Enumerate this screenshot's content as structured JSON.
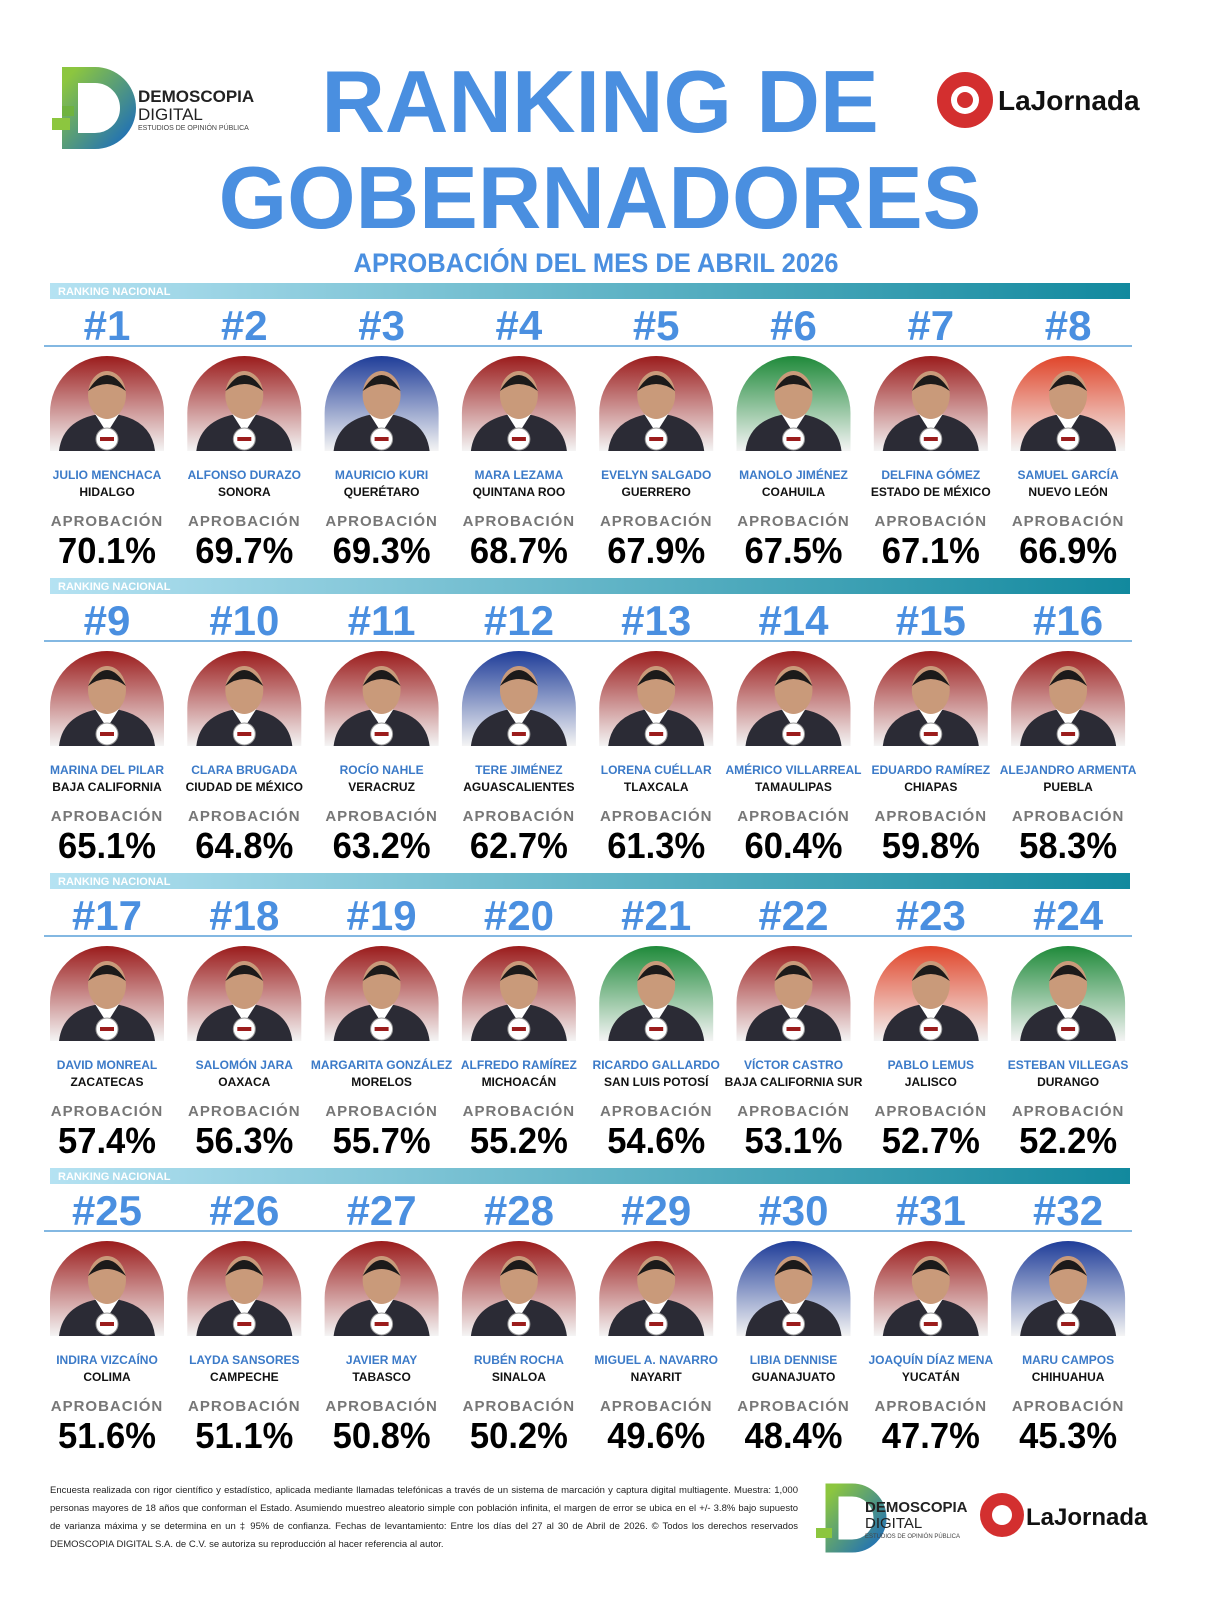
{
  "header": {
    "brand_name": "DEMOSCOPIA",
    "brand_name_2": "DIGITAL",
    "brand_tagline": "ESTUDIOS DE OPINIÓN PÚBLICA",
    "title_line_1": "RANKING DE",
    "title_line_2": "GOBERNADORES",
    "subtitle": "APROBACIÓN DEL MES DE ABRIL 2026",
    "partner": "LaJornada"
  },
  "section_label": "RANKING NACIONAL",
  "approval_label": "APROBACIÓN",
  "governors": [
    {
      "rank": "#1",
      "name": "JULIO MENCHACA",
      "state": "HIDALGO",
      "approval": "70.1%",
      "photo_color": "#9b1c1c"
    },
    {
      "rank": "#2",
      "name": "ALFONSO DURAZO",
      "state": "SONORA",
      "approval": "69.7%",
      "photo_color": "#9b1c1c"
    },
    {
      "rank": "#3",
      "name": "MAURICIO KURI",
      "state": "QUERÉTARO",
      "approval": "69.3%",
      "photo_color": "#1f3d99"
    },
    {
      "rank": "#4",
      "name": "MARA LEZAMA",
      "state": "QUINTANA ROO",
      "approval": "68.7%",
      "photo_color": "#9b1c1c"
    },
    {
      "rank": "#5",
      "name": "EVELYN SALGADO",
      "state": "GUERRERO",
      "approval": "67.9%",
      "photo_color": "#9b1c1c"
    },
    {
      "rank": "#6",
      "name": "MANOLO JIMÉNEZ",
      "state": "COAHUILA",
      "approval": "67.5%",
      "photo_color": "#1f8a3a"
    },
    {
      "rank": "#7",
      "name": "DELFINA GÓMEZ",
      "state": "ESTADO DE MÉXICO",
      "approval": "67.1%",
      "photo_color": "#9b1c1c"
    },
    {
      "rank": "#8",
      "name": "SAMUEL GARCÍA",
      "state": "NUEVO LEÓN",
      "approval": "66.9%",
      "photo_color": "#e0452a"
    },
    {
      "rank": "#9",
      "name": "MARINA DEL PILAR",
      "state": "BAJA CALIFORNIA",
      "approval": "65.1%",
      "photo_color": "#9b1c1c"
    },
    {
      "rank": "#10",
      "name": "CLARA BRUGADA",
      "state": "CIUDAD DE MÉXICO",
      "approval": "64.8%",
      "photo_color": "#9b1c1c"
    },
    {
      "rank": "#11",
      "name": "ROCÍO NAHLE",
      "state": "VERACRUZ",
      "approval": "63.2%",
      "photo_color": "#9b1c1c"
    },
    {
      "rank": "#12",
      "name": "TERE JIMÉNEZ",
      "state": "AGUASCALIENTES",
      "approval": "62.7%",
      "photo_color": "#1f3d99"
    },
    {
      "rank": "#13",
      "name": "LORENA CUÉLLAR",
      "state": "TLAXCALA",
      "approval": "61.3%",
      "photo_color": "#9b1c1c"
    },
    {
      "rank": "#14",
      "name": "AMÉRICO VILLARREAL",
      "state": "TAMAULIPAS",
      "approval": "60.4%",
      "photo_color": "#9b1c1c"
    },
    {
      "rank": "#15",
      "name": "EDUARDO RAMÍREZ",
      "state": "CHIAPAS",
      "approval": "59.8%",
      "photo_color": "#9b1c1c"
    },
    {
      "rank": "#16",
      "name": "ALEJANDRO ARMENTA",
      "state": "PUEBLA",
      "approval": "58.3%",
      "photo_color": "#9b1c1c"
    },
    {
      "rank": "#17",
      "name": "DAVID MONREAL",
      "state": "ZACATECAS",
      "approval": "57.4%",
      "photo_color": "#9b1c1c"
    },
    {
      "rank": "#18",
      "name": "SALOMÓN JARA",
      "state": "OAXACA",
      "approval": "56.3%",
      "photo_color": "#9b1c1c"
    },
    {
      "rank": "#19",
      "name": "MARGARITA GONZÁLEZ",
      "state": "MORELOS",
      "approval": "55.7%",
      "photo_color": "#9b1c1c"
    },
    {
      "rank": "#20",
      "name": "ALFREDO RAMÍREZ",
      "state": "MICHOACÁN",
      "approval": "55.2%",
      "photo_color": "#9b1c1c"
    },
    {
      "rank": "#21",
      "name": "RICARDO GALLARDO",
      "state": "SAN LUIS POTOSÍ",
      "approval": "54.6%",
      "photo_color": "#1f8a3a"
    },
    {
      "rank": "#22",
      "name": "VÍCTOR CASTRO",
      "state": "BAJA CALIFORNIA SUR",
      "approval": "53.1%",
      "photo_color": "#9b1c1c"
    },
    {
      "rank": "#23",
      "name": "PABLO LEMUS",
      "state": "JALISCO",
      "approval": "52.7%",
      "photo_color": "#e0452a"
    },
    {
      "rank": "#24",
      "name": "ESTEBAN VILLEGAS",
      "state": "DURANGO",
      "approval": "52.2%",
      "photo_color": "#1f8a3a"
    },
    {
      "rank": "#25",
      "name": "INDIRA VIZCAÍNO",
      "state": "COLIMA",
      "approval": "51.6%",
      "photo_color": "#9b1c1c"
    },
    {
      "rank": "#26",
      "name": "LAYDA SANSORES",
      "state": "CAMPECHE",
      "approval": "51.1%",
      "photo_color": "#9b1c1c"
    },
    {
      "rank": "#27",
      "name": "JAVIER MAY",
      "state": "TABASCO",
      "approval": "50.8%",
      "photo_color": "#9b1c1c"
    },
    {
      "rank": "#28",
      "name": "RUBÉN ROCHA",
      "state": "SINALOA",
      "approval": "50.2%",
      "photo_color": "#9b1c1c"
    },
    {
      "rank": "#29",
      "name": "MIGUEL A. NAVARRO",
      "state": "NAYARIT",
      "approval": "49.6%",
      "photo_color": "#9b1c1c"
    },
    {
      "rank": "#30",
      "name": "LIBIA DENNISE",
      "state": "GUANAJUATO",
      "approval": "48.4%",
      "photo_color": "#1f3d99"
    },
    {
      "rank": "#31",
      "name": "JOAQUÍN DÍAZ MENA",
      "state": "YUCATÁN",
      "approval": "47.7%",
      "photo_color": "#9b1c1c"
    },
    {
      "rank": "#32",
      "name": "MARU CAMPOS",
      "state": "CHIHUAHUA",
      "approval": "45.3%",
      "photo_color": "#1f3d99"
    }
  ],
  "footer": {
    "methodology": "Encuesta realizada con rigor científico y estadístico, aplicada mediante llamadas telefónicas a través de un sistema de marcación y captura digital multiagente. Muestra: 1,000 personas mayores de 18 años que conforman el Estado. Asumiendo muestreo aleatorio simple con población infinita, el margen de error se ubica en el +/- 3.8% bajo supuesto de varianza máxima y se determina en un ‡ 95% de confianza. Fechas de levantamiento: Entre los días del 27 al 30 de Abril de 2026. © Todos los derechos reservados DEMOSCOPIA DIGITAL S.A. de C.V. se autoriza su reproducción al hacer referencia al autor."
  }
}
